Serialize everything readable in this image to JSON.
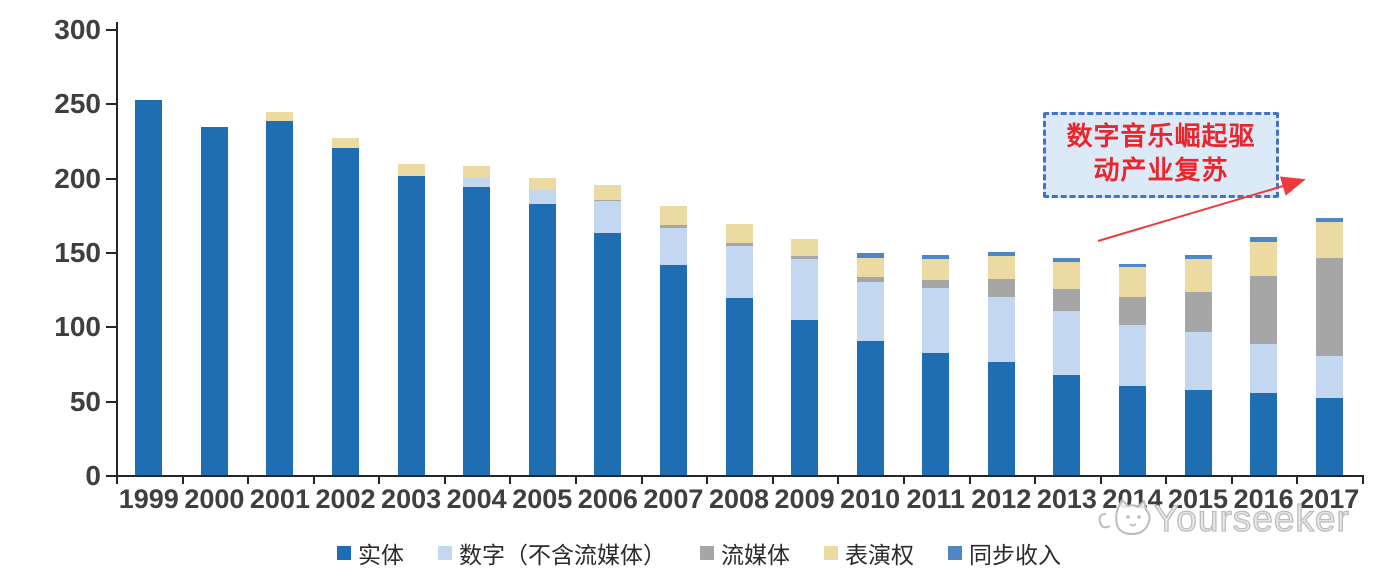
{
  "chart_data": {
    "type": "bar",
    "stacked": true,
    "title": "",
    "xlabel": "",
    "ylabel": "",
    "ylim": [
      0,
      300
    ],
    "yticks": [
      0,
      50,
      100,
      150,
      200,
      250,
      300
    ],
    "grid": false,
    "legend_position": "bottom",
    "categories": [
      "1999",
      "2000",
      "2001",
      "2002",
      "2003",
      "2004",
      "2005",
      "2006",
      "2007",
      "2008",
      "2009",
      "2010",
      "2011",
      "2012",
      "2013",
      "2014",
      "2015",
      "2016",
      "2017"
    ],
    "series": [
      {
        "name": "实体",
        "color": "#1f6db2",
        "values": [
          252,
          234,
          238,
          220,
          201,
          194,
          182,
          163,
          141,
          119,
          104,
          90,
          82,
          76,
          67,
          60,
          57,
          55,
          52
        ]
      },
      {
        "name": "数字（不含流媒体）",
        "color": "#c3d8f0",
        "values": [
          0,
          0,
          0,
          0,
          0,
          6,
          10,
          21,
          25,
          35,
          41,
          40,
          44,
          44,
          43,
          41,
          39,
          33,
          28
        ]
      },
      {
        "name": "流媒体",
        "color": "#a6a6a6",
        "values": [
          0,
          0,
          0,
          0,
          0,
          0,
          0,
          1,
          2,
          2,
          2,
          3,
          5,
          12,
          15,
          19,
          27,
          46,
          66
        ]
      },
      {
        "name": "表演权",
        "color": "#ebdba2",
        "values": [
          0,
          0,
          6,
          7,
          8,
          8,
          8,
          10,
          13,
          13,
          12,
          13,
          14,
          15,
          18,
          20,
          22,
          23,
          24
        ]
      },
      {
        "name": "同步收入",
        "color": "#4e86c6",
        "values": [
          0,
          0,
          0,
          0,
          0,
          0,
          0,
          0,
          0,
          0,
          0,
          3,
          3,
          3,
          3,
          2,
          3,
          3,
          3
        ]
      }
    ]
  },
  "annotation": {
    "line1": "数字音乐崛起驱",
    "line2": "动产业复苏",
    "box_fill": "#dce9f7",
    "box_border": "#4472c4",
    "text_color": "#e8262d",
    "arrow_color": "#ed3a3a"
  },
  "watermark": {
    "text": "Yourseeker",
    "icon": "cat-logo-icon",
    "color": "#bdbdbd"
  }
}
